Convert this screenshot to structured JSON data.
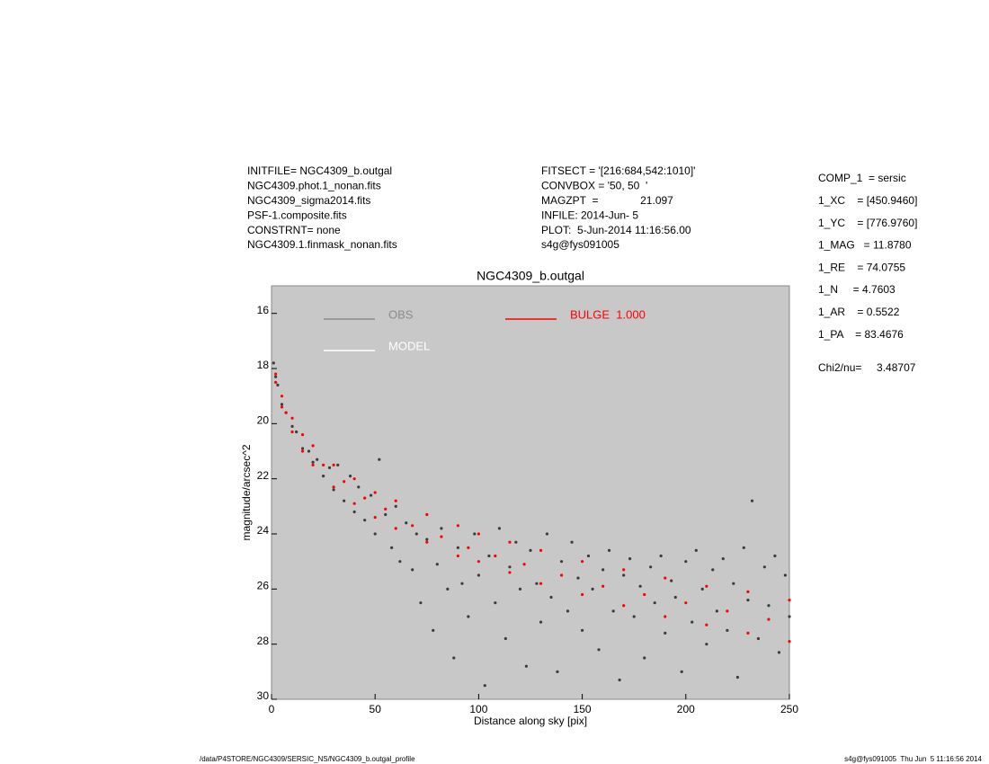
{
  "header_left": [
    "INITFILE= NGC4309_b.outgal",
    "NGC4309.phot.1_nonan.fits",
    "NGC4309_sigma2014.fits",
    "PSF-1.composite.fits",
    "CONSTRNT= none",
    "NGC4309.1.finmask_nonan.fits"
  ],
  "header_middle": [
    "FITSECT = '[216:684,542:1010]'",
    "CONVBOX = '50, 50  '",
    "MAGZPT  =              21.097",
    "INFILE: 2014-Jun- 5",
    "PLOT:  5-Jun-2014 11:16:56.00",
    "s4g@fys091005"
  ],
  "params": [
    "COMP_1  = sersic",
    "1_XC    = [450.9460]",
    "1_YC    = [776.9760]",
    "1_MAG   = 11.8780",
    "1_RE    = 74.0755",
    "1_N     = 4.7603",
    "1_AR    = 0.5522",
    "1_PA    = 83.4676"
  ],
  "chi2": "Chi2/nu=     3.48707",
  "footer_left": "/data/P4STORE/NGC4309/SERSIC_NS/NGC4309_b.outgal_profile",
  "footer_right": "s4g@fys091005  Thu Jun  5 11:16:56 2014",
  "chart_data": {
    "type": "scatter",
    "title": "NGC4309_b.outgal",
    "x_label": "Distance along sky [pix]",
    "y_label": "magnitude/arcsec^2",
    "xlim": [
      0,
      250
    ],
    "xticks": [
      0,
      50,
      100,
      150,
      200,
      250
    ],
    "ylim": [
      30,
      15
    ],
    "yticks": [
      16,
      18,
      20,
      22,
      24,
      26,
      28,
      30
    ],
    "background": "#c8c8c8",
    "series": [
      {
        "name": "OBS",
        "color": "#3c3c3c",
        "legend_color": "#8c8c8c",
        "x": [
          1,
          2,
          3,
          5,
          7,
          10,
          12,
          15,
          18,
          20,
          22,
          25,
          28,
          30,
          32,
          35,
          38,
          40,
          42,
          45,
          48,
          50,
          52,
          55,
          58,
          60,
          62,
          65,
          68,
          70,
          72,
          75,
          78,
          80,
          82,
          85,
          88,
          90,
          92,
          95,
          98,
          100,
          103,
          105,
          108,
          110,
          113,
          115,
          118,
          120,
          123,
          125,
          128,
          130,
          133,
          135,
          138,
          140,
          143,
          145,
          148,
          150,
          153,
          155,
          158,
          160,
          163,
          165,
          168,
          170,
          173,
          175,
          178,
          180,
          183,
          185,
          188,
          190,
          193,
          195,
          198,
          200,
          203,
          205,
          208,
          210,
          213,
          215,
          218,
          220,
          223,
          225,
          228,
          230,
          232,
          235,
          238,
          240,
          243,
          245,
          248,
          250
        ],
        "values": [
          17.8,
          18.3,
          18.6,
          19.3,
          19.6,
          20.1,
          20.3,
          20.9,
          21.0,
          21.4,
          21.3,
          21.9,
          21.6,
          22.4,
          21.5,
          22.8,
          21.9,
          23.2,
          22.3,
          23.5,
          22.6,
          24.0,
          21.3,
          23.3,
          24.5,
          23.0,
          25.0,
          23.6,
          25.3,
          24.0,
          26.5,
          24.2,
          27.5,
          25.1,
          23.8,
          26.0,
          28.5,
          24.5,
          25.8,
          27.0,
          24.0,
          25.5,
          29.5,
          24.8,
          26.5,
          23.8,
          27.8,
          25.2,
          24.3,
          26.0,
          28.8,
          24.6,
          25.8,
          27.2,
          24.0,
          26.3,
          29.0,
          25.0,
          26.8,
          24.3,
          25.6,
          27.5,
          24.8,
          26.0,
          28.2,
          25.3,
          24.6,
          26.8,
          29.3,
          25.5,
          24.9,
          27.0,
          25.9,
          28.5,
          25.2,
          26.5,
          24.8,
          27.6,
          25.7,
          26.3,
          29.0,
          25.0,
          27.2,
          24.6,
          26.0,
          28.0,
          25.3,
          26.8,
          24.9,
          27.5,
          25.8,
          29.2,
          24.5,
          26.4,
          22.8,
          27.8,
          25.2,
          26.6,
          24.8,
          28.3,
          25.5,
          27.0
        ]
      },
      {
        "name": "MODEL",
        "color": "#ffffff",
        "x": [],
        "values": []
      },
      {
        "name": "BULGE  1.000",
        "color": "#ff0000",
        "x": [
          2,
          2,
          5,
          5,
          10,
          10,
          15,
          15,
          20,
          20,
          30,
          30,
          40,
          40,
          50,
          50,
          60,
          60,
          75,
          75,
          90,
          90,
          100,
          100,
          115,
          115,
          130,
          130,
          150,
          150,
          170,
          170,
          190,
          190,
          210,
          210,
          230,
          230,
          250,
          250,
          7,
          25,
          35,
          45,
          55,
          68,
          82,
          95,
          108,
          122,
          140,
          160,
          180,
          200,
          220,
          240
        ],
        "values": [
          18.2,
          18.5,
          19.0,
          19.4,
          19.8,
          20.3,
          20.4,
          21.0,
          20.8,
          21.5,
          21.5,
          22.3,
          22.0,
          22.9,
          22.5,
          23.4,
          22.8,
          23.8,
          23.3,
          24.3,
          23.7,
          24.8,
          24.0,
          25.0,
          24.3,
          25.4,
          24.6,
          25.8,
          25.0,
          26.2,
          25.3,
          26.6,
          25.6,
          27.0,
          25.9,
          27.3,
          26.1,
          27.6,
          26.4,
          27.9,
          19.6,
          21.5,
          22.1,
          22.7,
          23.1,
          23.7,
          24.1,
          24.5,
          24.8,
          25.1,
          25.5,
          25.9,
          26.2,
          26.5,
          26.8,
          27.1
        ]
      }
    ]
  }
}
